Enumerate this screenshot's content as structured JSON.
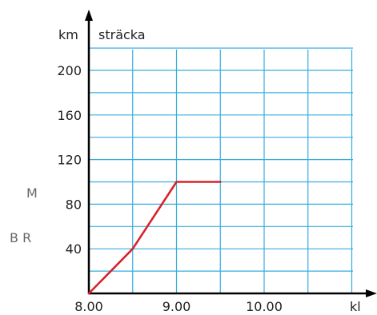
{
  "chart_data": {
    "type": "line",
    "title": "",
    "ylabel": "sträcka",
    "yunit": "km",
    "xunit": "kl",
    "x_ticks": [
      "8.00",
      "9.00",
      "10.00"
    ],
    "y_ticks": [
      40,
      80,
      120,
      160,
      200
    ],
    "xlim": [
      "8.00",
      "14.00"
    ],
    "ylim": [
      0,
      240
    ],
    "grid": true,
    "series": [
      {
        "x": [
          "8.00",
          "8.30",
          "9.00",
          "9.30"
        ],
        "y": [
          0,
          40,
          100,
          100
        ]
      }
    ]
  },
  "side_labels": {
    "upper": "M",
    "lower": "B R"
  },
  "colors": {
    "grid": "#36aee0",
    "line": "#d8232a",
    "axis": "#000000",
    "text": "#222222"
  }
}
